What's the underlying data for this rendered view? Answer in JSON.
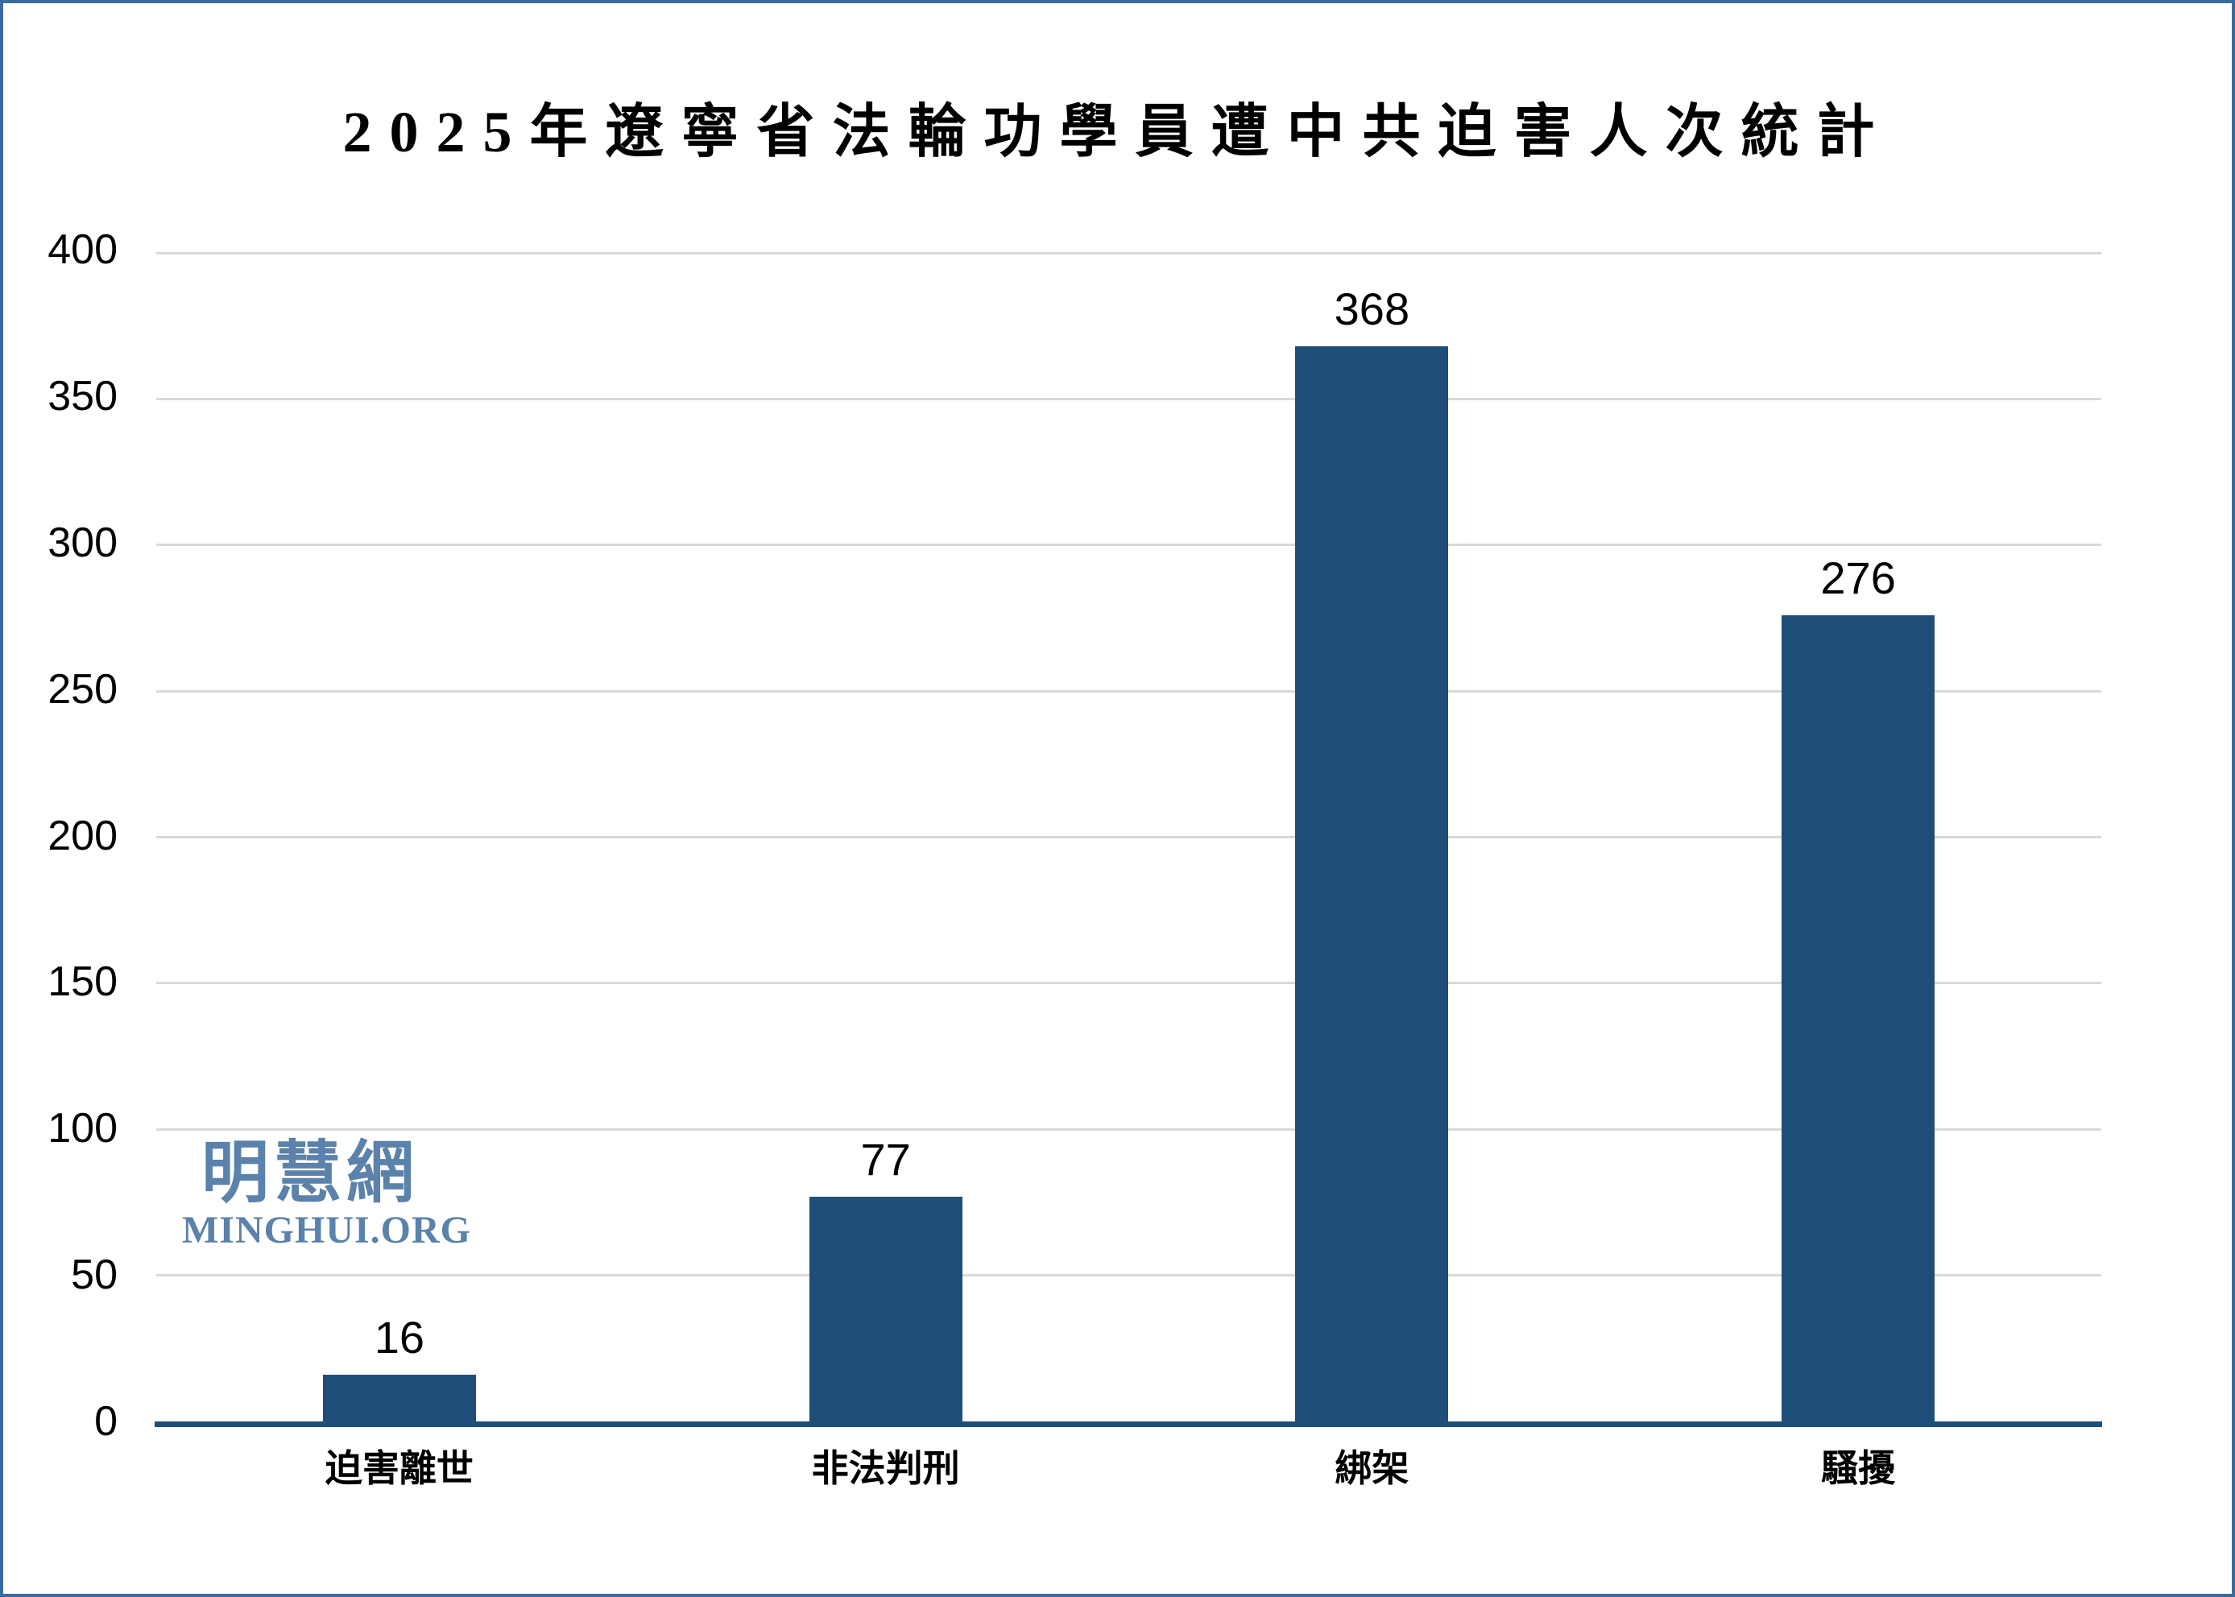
{
  "frame": {
    "background": "#FFFFFF",
    "border_color": "#3A6B9D"
  },
  "title": "2025年遼寧省法輪功學員遭中共迫害人次統計",
  "watermark": {
    "cjk": "明慧網",
    "latin": "MINGHUI.ORG",
    "color": "#5A82AA"
  },
  "chart_data": {
    "type": "bar",
    "title": "2025年遼寧省法輪功學員遭中共迫害人次統計",
    "categories": [
      "迫害離世",
      "非法判刑",
      "綁架",
      "騷擾"
    ],
    "values": [
      16,
      77,
      368,
      276
    ],
    "value_labels_shown": [
      "16",
      "77",
      "368",
      "276"
    ],
    "xlabel": "",
    "ylabel": "",
    "ylim": [
      0,
      400
    ],
    "yticks": [
      0,
      50,
      100,
      150,
      200,
      250,
      300,
      350,
      400
    ],
    "grid": "horizontal",
    "legend_position": "none",
    "value_label_position": "above-bars",
    "colors": {
      "bar": "#1F4E78",
      "gridline": "#D9D9D9",
      "axis_line": "#1F4E78",
      "text": "#000000"
    }
  }
}
